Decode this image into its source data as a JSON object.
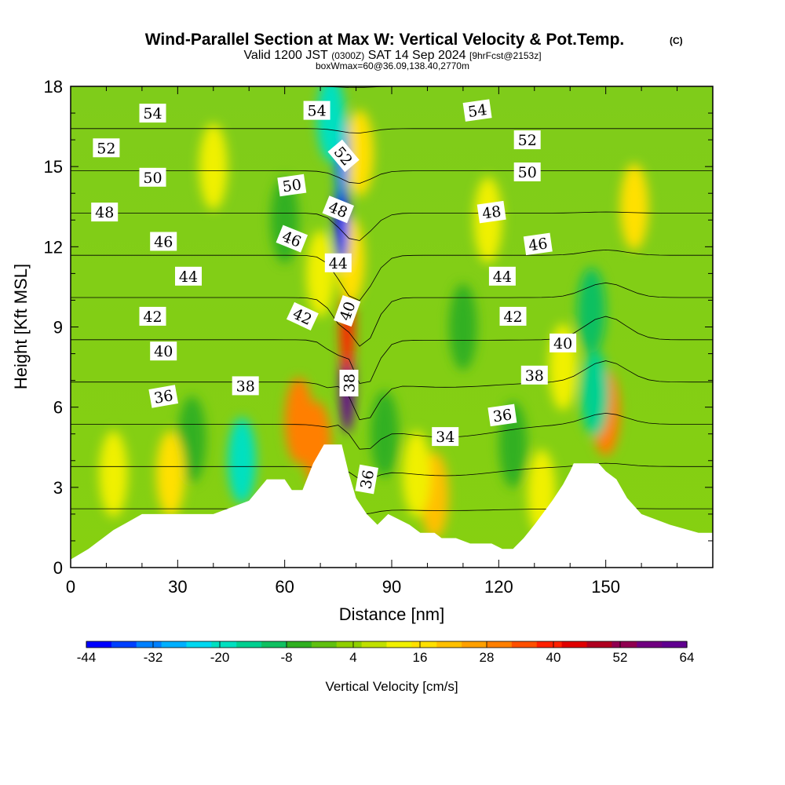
{
  "chart_data": {
    "type": "heatmap",
    "title": "Wind-Parallel Section at Max W: Vertical Velocity & Pot.Temp.",
    "title_mark": "(C)",
    "subtitle_valid": "Valid 1200 JST",
    "subtitle_utc": "(0300Z)",
    "subtitle_date": "SAT 14 Sep 2024",
    "subtitle_fcst": "[9hrFcst@2153z]",
    "subtitle_box": "boxWmax=60@36.09,138.40,2770m",
    "xlabel": "Distance [nm]",
    "ylabel": "Height [Kft MSL]",
    "xlim": [
      0,
      180
    ],
    "ylim": [
      0,
      18
    ],
    "xticks": [
      0,
      30,
      60,
      90,
      120,
      150
    ],
    "yticks": [
      0,
      3,
      6,
      9,
      12,
      15,
      18
    ],
    "colorbar": {
      "label": "Vertical Velocity [cm/s]",
      "ticks": [
        -44,
        -32,
        -20,
        -8,
        4,
        16,
        28,
        40,
        52,
        64
      ],
      "colors": [
        "#0000ff",
        "#0040ff",
        "#0080ff",
        "#00b0ff",
        "#00d8f0",
        "#00e0c0",
        "#00d090",
        "#10c060",
        "#30b020",
        "#60c010",
        "#90d000",
        "#c0e000",
        "#f0f000",
        "#ffe000",
        "#ffc000",
        "#ffa000",
        "#ff7f00",
        "#ff5000",
        "#ff2000",
        "#e00000",
        "#b00020",
        "#900050",
        "#700080",
        "#600090"
      ]
    },
    "terrain": [
      [
        0,
        0.3
      ],
      [
        5,
        0.7
      ],
      [
        8,
        1.0
      ],
      [
        12,
        1.4
      ],
      [
        16,
        1.7
      ],
      [
        20,
        2.0
      ],
      [
        40,
        2.0
      ],
      [
        50,
        2.5
      ],
      [
        55,
        3.3
      ],
      [
        60,
        3.3
      ],
      [
        62,
        2.9
      ],
      [
        65,
        2.9
      ],
      [
        68,
        3.9
      ],
      [
        71,
        4.6
      ],
      [
        76,
        4.6
      ],
      [
        78,
        3.5
      ],
      [
        80,
        2.6
      ],
      [
        83,
        2.0
      ],
      [
        86,
        1.6
      ],
      [
        89,
        2.0
      ],
      [
        95,
        1.6
      ],
      [
        98,
        1.3
      ],
      [
        102,
        1.3
      ],
      [
        104,
        1.1
      ],
      [
        108,
        1.1
      ],
      [
        112,
        0.9
      ],
      [
        118,
        0.9
      ],
      [
        121,
        0.7
      ],
      [
        124,
        0.7
      ],
      [
        127,
        1.1
      ],
      [
        130,
        1.6
      ],
      [
        135,
        2.5
      ],
      [
        138,
        3.1
      ],
      [
        140,
        3.6
      ],
      [
        141,
        3.9
      ],
      [
        148,
        3.9
      ],
      [
        150,
        3.6
      ],
      [
        153,
        3.3
      ],
      [
        156,
        2.6
      ],
      [
        160,
        2.0
      ],
      [
        168,
        1.6
      ],
      [
        176,
        1.3
      ],
      [
        180,
        1.3
      ]
    ],
    "w_features": [
      {
        "x": 77.5,
        "y": 6.8,
        "value": 60
      },
      {
        "x": 77.5,
        "y": 9.0,
        "value": 40
      },
      {
        "x": 78.5,
        "y": 11.5,
        "value": 16
      },
      {
        "x": 81,
        "y": 15.5,
        "value": 16
      },
      {
        "x": 76,
        "y": 13.0,
        "value": -44
      },
      {
        "x": 76,
        "y": 15.5,
        "value": -32
      },
      {
        "x": 73,
        "y": 16.8,
        "value": -20
      },
      {
        "x": 64,
        "y": 5.5,
        "value": 28
      },
      {
        "x": 69,
        "y": 4.6,
        "value": 28
      },
      {
        "x": 70,
        "y": 11.0,
        "value": 10
      },
      {
        "x": 60,
        "y": 13.0,
        "value": -8
      },
      {
        "x": 150,
        "y": 5.8,
        "value": 28
      },
      {
        "x": 158,
        "y": 13.5,
        "value": 16
      },
      {
        "x": 147,
        "y": 6.5,
        "value": -16
      },
      {
        "x": 146,
        "y": 9.6,
        "value": -10
      },
      {
        "x": 48,
        "y": 4.0,
        "value": -20
      },
      {
        "x": 34,
        "y": 4.8,
        "value": -8
      },
      {
        "x": 28,
        "y": 3.5,
        "value": 16
      },
      {
        "x": 12,
        "y": 3.5,
        "value": 10
      },
      {
        "x": 102,
        "y": 2.7,
        "value": 22
      },
      {
        "x": 97,
        "y": 3.5,
        "value": 12
      },
      {
        "x": 132,
        "y": 2.8,
        "value": 14
      },
      {
        "x": 124,
        "y": 4.6,
        "value": -8
      },
      {
        "x": 110,
        "y": 9.0,
        "value": -6
      },
      {
        "x": 117,
        "y": 13.0,
        "value": 12
      },
      {
        "x": 40,
        "y": 15.0,
        "value": 10
      },
      {
        "x": 138,
        "y": 7.5,
        "value": 10
      },
      {
        "x": 88,
        "y": 5.0,
        "value": -6
      }
    ],
    "theta_levels": [
      34,
      36,
      38,
      40,
      42,
      44,
      46,
      48,
      50,
      52,
      54
    ],
    "contour_labels": [
      {
        "text": "54",
        "x": 23,
        "y": 17.0,
        "rotation": 0
      },
      {
        "text": "54",
        "x": 69,
        "y": 17.1,
        "rotation": 0
      },
      {
        "text": "54",
        "x": 114,
        "y": 17.1,
        "rotation": -8
      },
      {
        "text": "52",
        "x": 10,
        "y": 15.7,
        "rotation": 0
      },
      {
        "text": "52",
        "x": 76.5,
        "y": 15.4,
        "rotation": 50
      },
      {
        "text": "52",
        "x": 128,
        "y": 16.0,
        "rotation": 0
      },
      {
        "text": "50",
        "x": 23,
        "y": 14.6,
        "rotation": 0
      },
      {
        "text": "50",
        "x": 62,
        "y": 14.3,
        "rotation": -8
      },
      {
        "text": "50",
        "x": 128,
        "y": 14.8,
        "rotation": 0
      },
      {
        "text": "48",
        "x": 9.5,
        "y": 13.3,
        "rotation": 0
      },
      {
        "text": "48",
        "x": 75,
        "y": 13.4,
        "rotation": 22
      },
      {
        "text": "48",
        "x": 118,
        "y": 13.3,
        "rotation": -8
      },
      {
        "text": "46",
        "x": 26,
        "y": 12.2,
        "rotation": 0
      },
      {
        "text": "46",
        "x": 62,
        "y": 12.3,
        "rotation": 22
      },
      {
        "text": "46",
        "x": 131,
        "y": 12.1,
        "rotation": -8
      },
      {
        "text": "44",
        "x": 33,
        "y": 10.9,
        "rotation": 0
      },
      {
        "text": "44",
        "x": 75,
        "y": 11.4,
        "rotation": 0
      },
      {
        "text": "44",
        "x": 121,
        "y": 10.9,
        "rotation": 0
      },
      {
        "text": "42",
        "x": 23,
        "y": 9.4,
        "rotation": 0
      },
      {
        "text": "42",
        "x": 65,
        "y": 9.4,
        "rotation": 25
      },
      {
        "text": "42",
        "x": 124,
        "y": 9.4,
        "rotation": 0
      },
      {
        "text": "40",
        "x": 26,
        "y": 8.1,
        "rotation": 0
      },
      {
        "text": "40",
        "x": 77.5,
        "y": 9.6,
        "rotation": -70
      },
      {
        "text": "40",
        "x": 138,
        "y": 8.4,
        "rotation": 0
      },
      {
        "text": "38",
        "x": 49,
        "y": 6.8,
        "rotation": 0
      },
      {
        "text": "38",
        "x": 78,
        "y": 6.9,
        "rotation": -90
      },
      {
        "text": "38",
        "x": 130,
        "y": 7.2,
        "rotation": 0
      },
      {
        "text": "36",
        "x": 26,
        "y": 6.4,
        "rotation": -10
      },
      {
        "text": "36",
        "x": 83,
        "y": 3.3,
        "rotation": -80
      },
      {
        "text": "36",
        "x": 121,
        "y": 5.7,
        "rotation": -8
      },
      {
        "text": "34",
        "x": 105,
        "y": 4.9,
        "rotation": 0
      }
    ]
  }
}
